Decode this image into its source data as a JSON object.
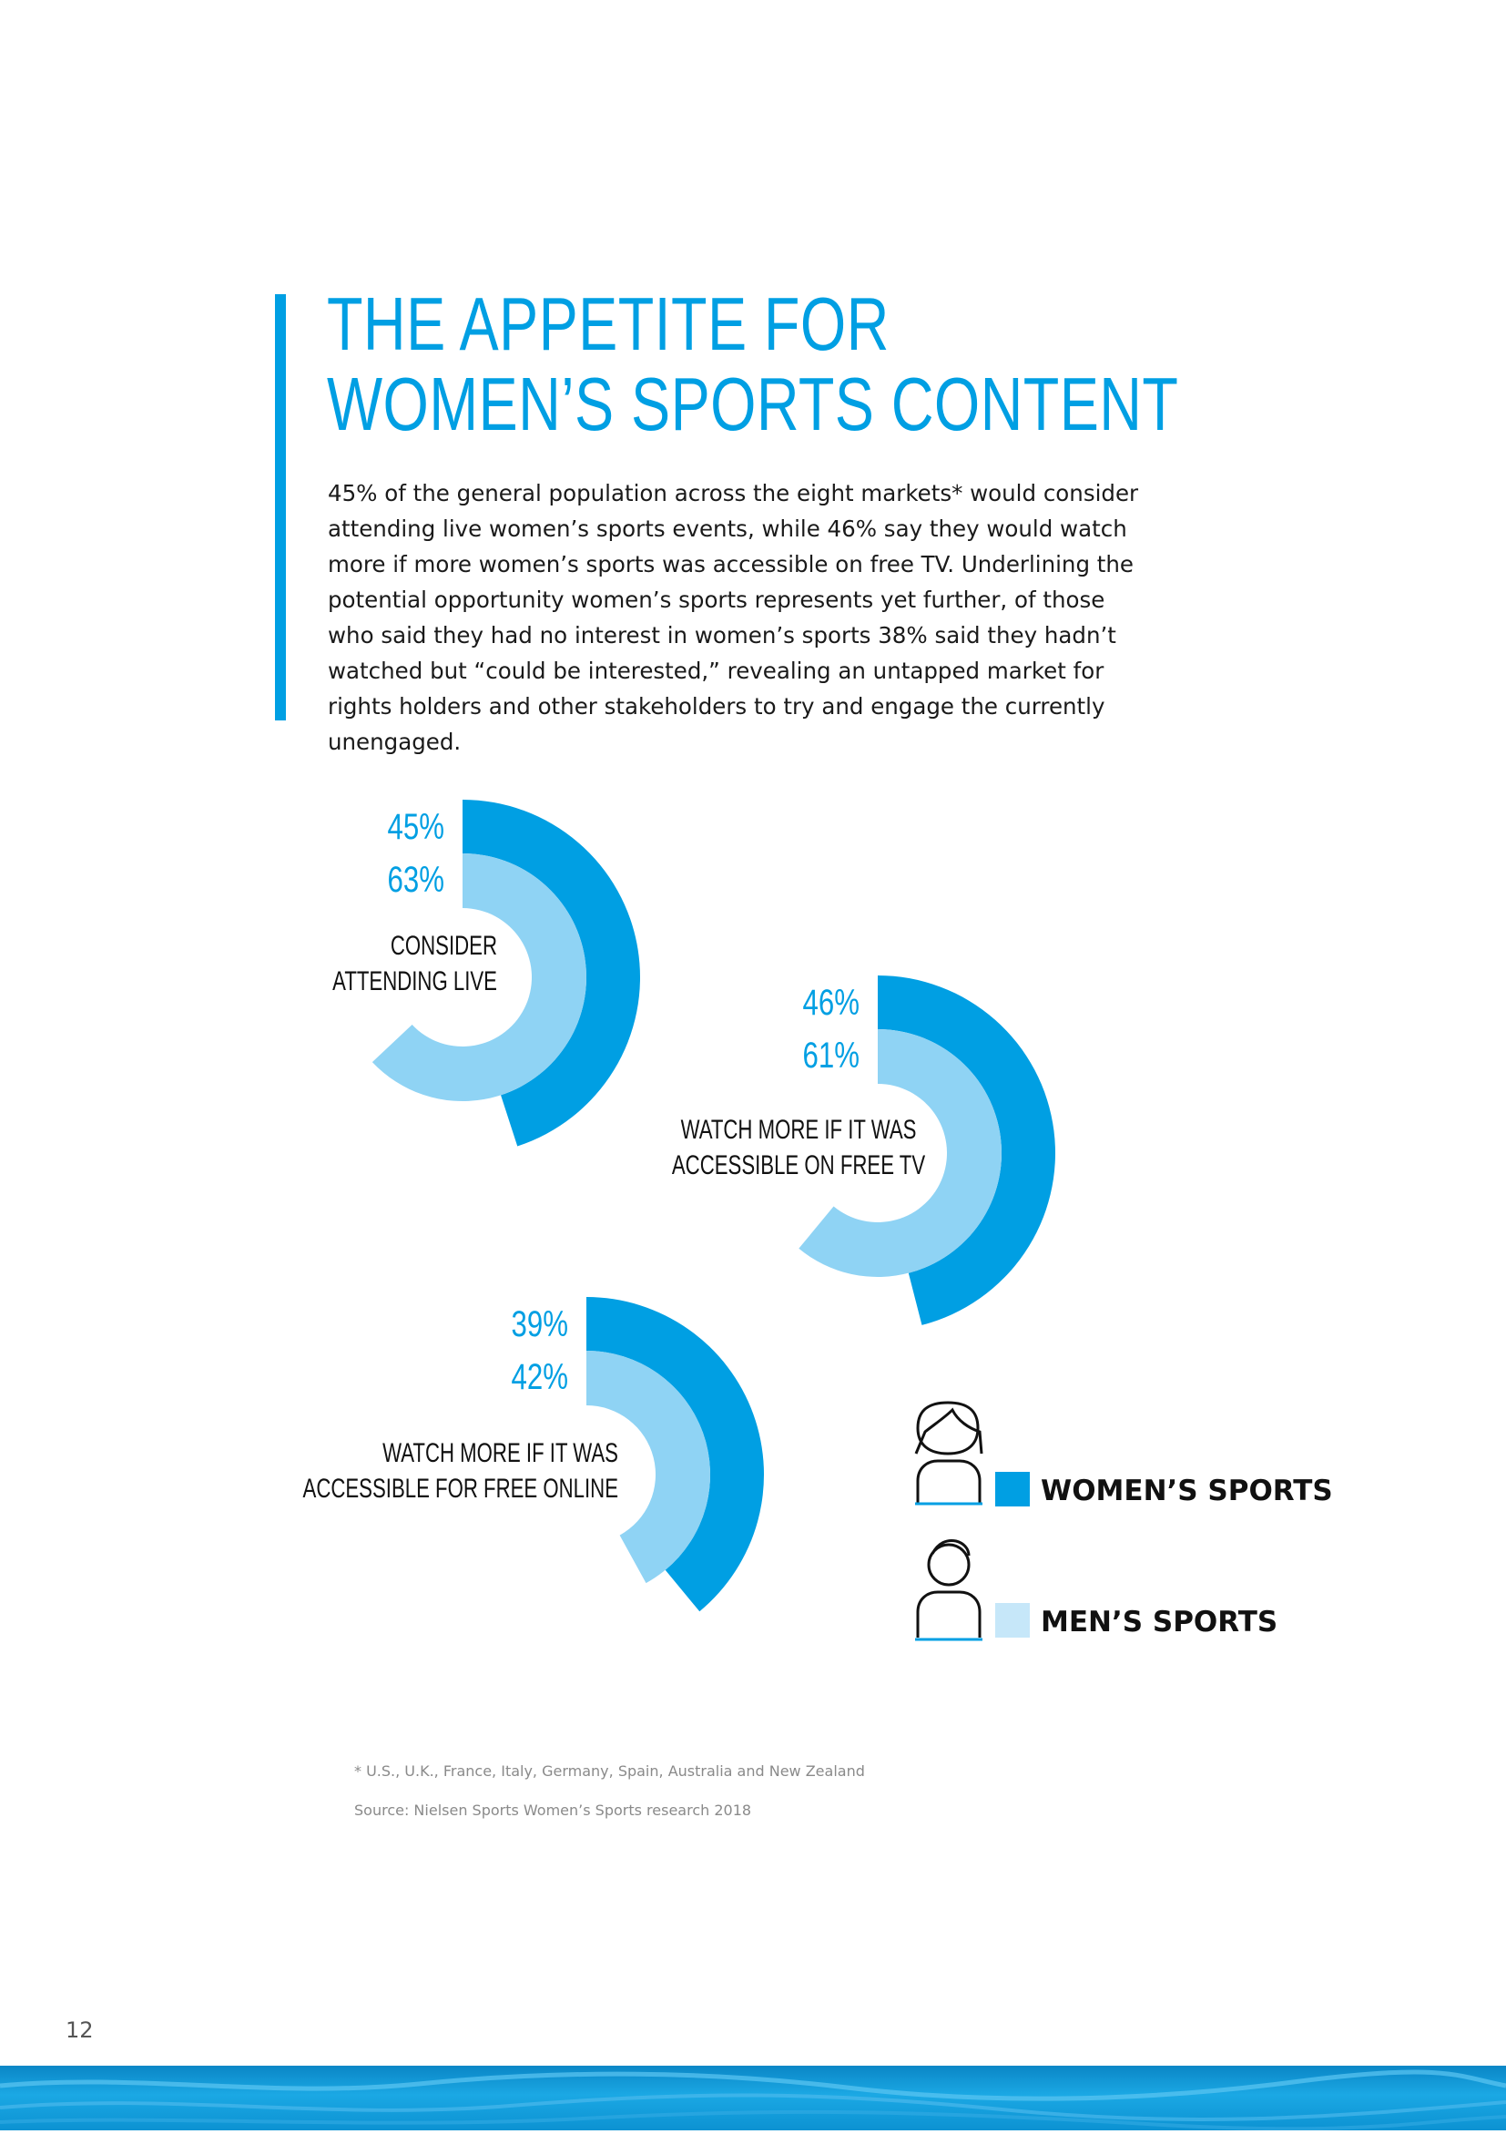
{
  "page": {
    "title_lines": [
      "THE APPETITE FOR",
      "WOMEN’S SPORTS CONTENT"
    ],
    "intro": "45% of the general population across the eight markets* would consider attending live women’s sports events, while 46% say they would watch more if more women’s sports was accessible on free TV. Underlining the potential opportunity women’s sports represents yet further, of those who said they had no interest in women’s sports 38% said they hadn’t watched but “could be interested,” revealing an untapped market for rights holders and other stakeholders to try and engage the currently unengaged.",
    "footnote": "* U.S., U.K., France, Italy, Germany, Spain, Australia and New Zealand",
    "source": "Source: Nielsen Sports Women’s Sports research 2018",
    "page_number": "12"
  },
  "colors": {
    "accent": "#009fe3",
    "womens_sports": "#009fe3",
    "mens_sports": "#8fd3f4",
    "mens_legend_swatch": "#c6e7f9"
  },
  "icons": {
    "legend_women": "woman-icon",
    "legend_men": "man-icon"
  },
  "chart_data": {
    "type": "radial-bar",
    "unit": "%",
    "series": [
      {
        "name": "WOMEN’S SPORTS",
        "color": "#009fe3"
      },
      {
        "name": "MEN’S SPORTS",
        "color": "#8fd3f4"
      }
    ],
    "categories": [
      {
        "label_lines": [
          "CONSIDER",
          "ATTENDING LIVE"
        ],
        "womens": 45,
        "mens": 63
      },
      {
        "label_lines": [
          "WATCH MORE IF IT WAS",
          "ACCESSIBLE ON FREE TV"
        ],
        "womens": 46,
        "mens": 61
      },
      {
        "label_lines": [
          "WATCH MORE IF IT WAS",
          "ACCESSIBLE FOR FREE ONLINE"
        ],
        "womens": 39,
        "mens": 42
      }
    ],
    "value_labels": [
      {
        "womens": "45%",
        "mens": "63%"
      },
      {
        "womens": "46%",
        "mens": "61%"
      },
      {
        "womens": "39%",
        "mens": "42%"
      }
    ],
    "legend": [
      "WOMEN’S SPORTS",
      "MEN’S SPORTS"
    ]
  }
}
